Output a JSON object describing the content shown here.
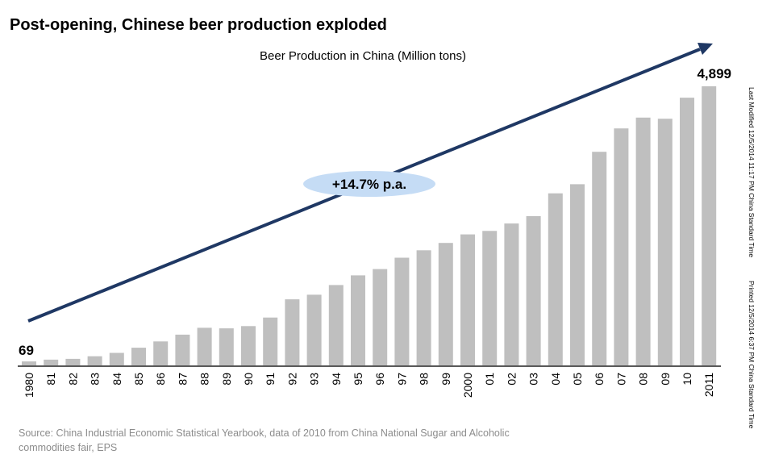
{
  "title": "Post-opening, Chinese beer production exploded",
  "chart_data": {
    "type": "bar",
    "title": "Beer Production in China (Million tons)",
    "categories": [
      "1980",
      "81",
      "82",
      "83",
      "84",
      "85",
      "86",
      "87",
      "88",
      "89",
      "90",
      "91",
      "92",
      "93",
      "94",
      "95",
      "96",
      "97",
      "98",
      "99",
      "2000",
      "01",
      "02",
      "03",
      "04",
      "05",
      "06",
      "07",
      "08",
      "09",
      "10",
      "2011"
    ],
    "values": [
      69,
      100,
      115,
      160,
      220,
      310,
      420,
      540,
      660,
      650,
      690,
      840,
      1160,
      1240,
      1410,
      1580,
      1690,
      1890,
      2020,
      2150,
      2300,
      2360,
      2490,
      2620,
      3020,
      3180,
      3750,
      4160,
      4350,
      4330,
      4700,
      4899
    ],
    "value_labels": {
      "first": "69",
      "last": "4,899"
    },
    "ylim": [
      0,
      5000
    ],
    "xlabel": "",
    "ylabel": "",
    "bar_color": "#bfbfbf",
    "axis_color": "#595959",
    "trend": {
      "label": "+14.7% p.a.",
      "arrow_color": "#1f3864",
      "badge_color": "#c5dcf5"
    }
  },
  "source": "Source: China Industrial Economic Statistical  Yearbook, data of 2010  from China National Sugar and Alcoholic commodities fair, EPS",
  "side_notes": {
    "modified": "Last Modified 12/5/2014 11:17 PM China Standard Time",
    "printed": "Printed 12/5/2014 6:37 PM China Standard Time"
  }
}
